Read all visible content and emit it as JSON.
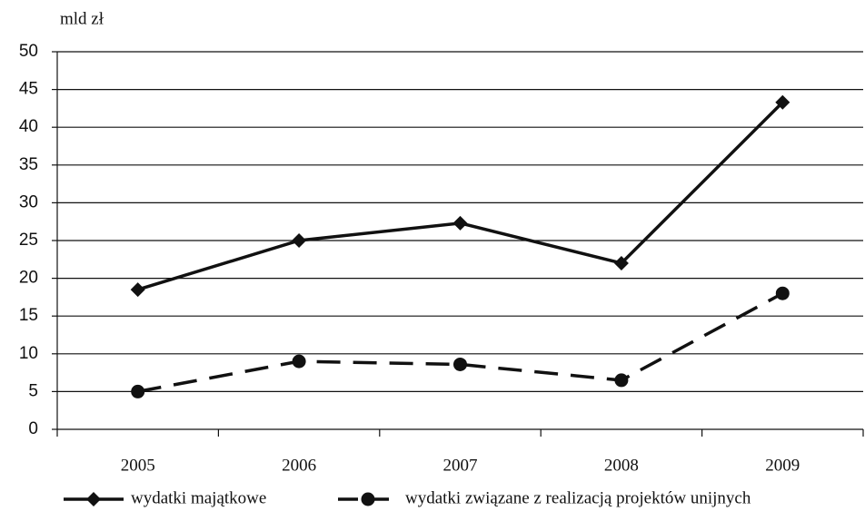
{
  "chart_data": {
    "type": "line",
    "y_unit_label": "mld zł",
    "categories": [
      "2005",
      "2006",
      "2007",
      "2008",
      "2009"
    ],
    "series": [
      {
        "name": "wydatki majątkowe",
        "color": "#111111",
        "marker": "diamond",
        "dashed": false,
        "values": [
          18.5,
          25,
          27.3,
          22,
          43.3
        ]
      },
      {
        "name": "wydatki związane z realizacją projektów unijnych",
        "color": "#111111",
        "marker": "circle",
        "dashed": true,
        "values": [
          5,
          9,
          8.6,
          6.5,
          18
        ]
      }
    ],
    "ylim": [
      0,
      50
    ],
    "yticks": [
      0,
      5,
      10,
      15,
      20,
      25,
      30,
      35,
      40,
      45,
      50
    ],
    "grid": true
  }
}
